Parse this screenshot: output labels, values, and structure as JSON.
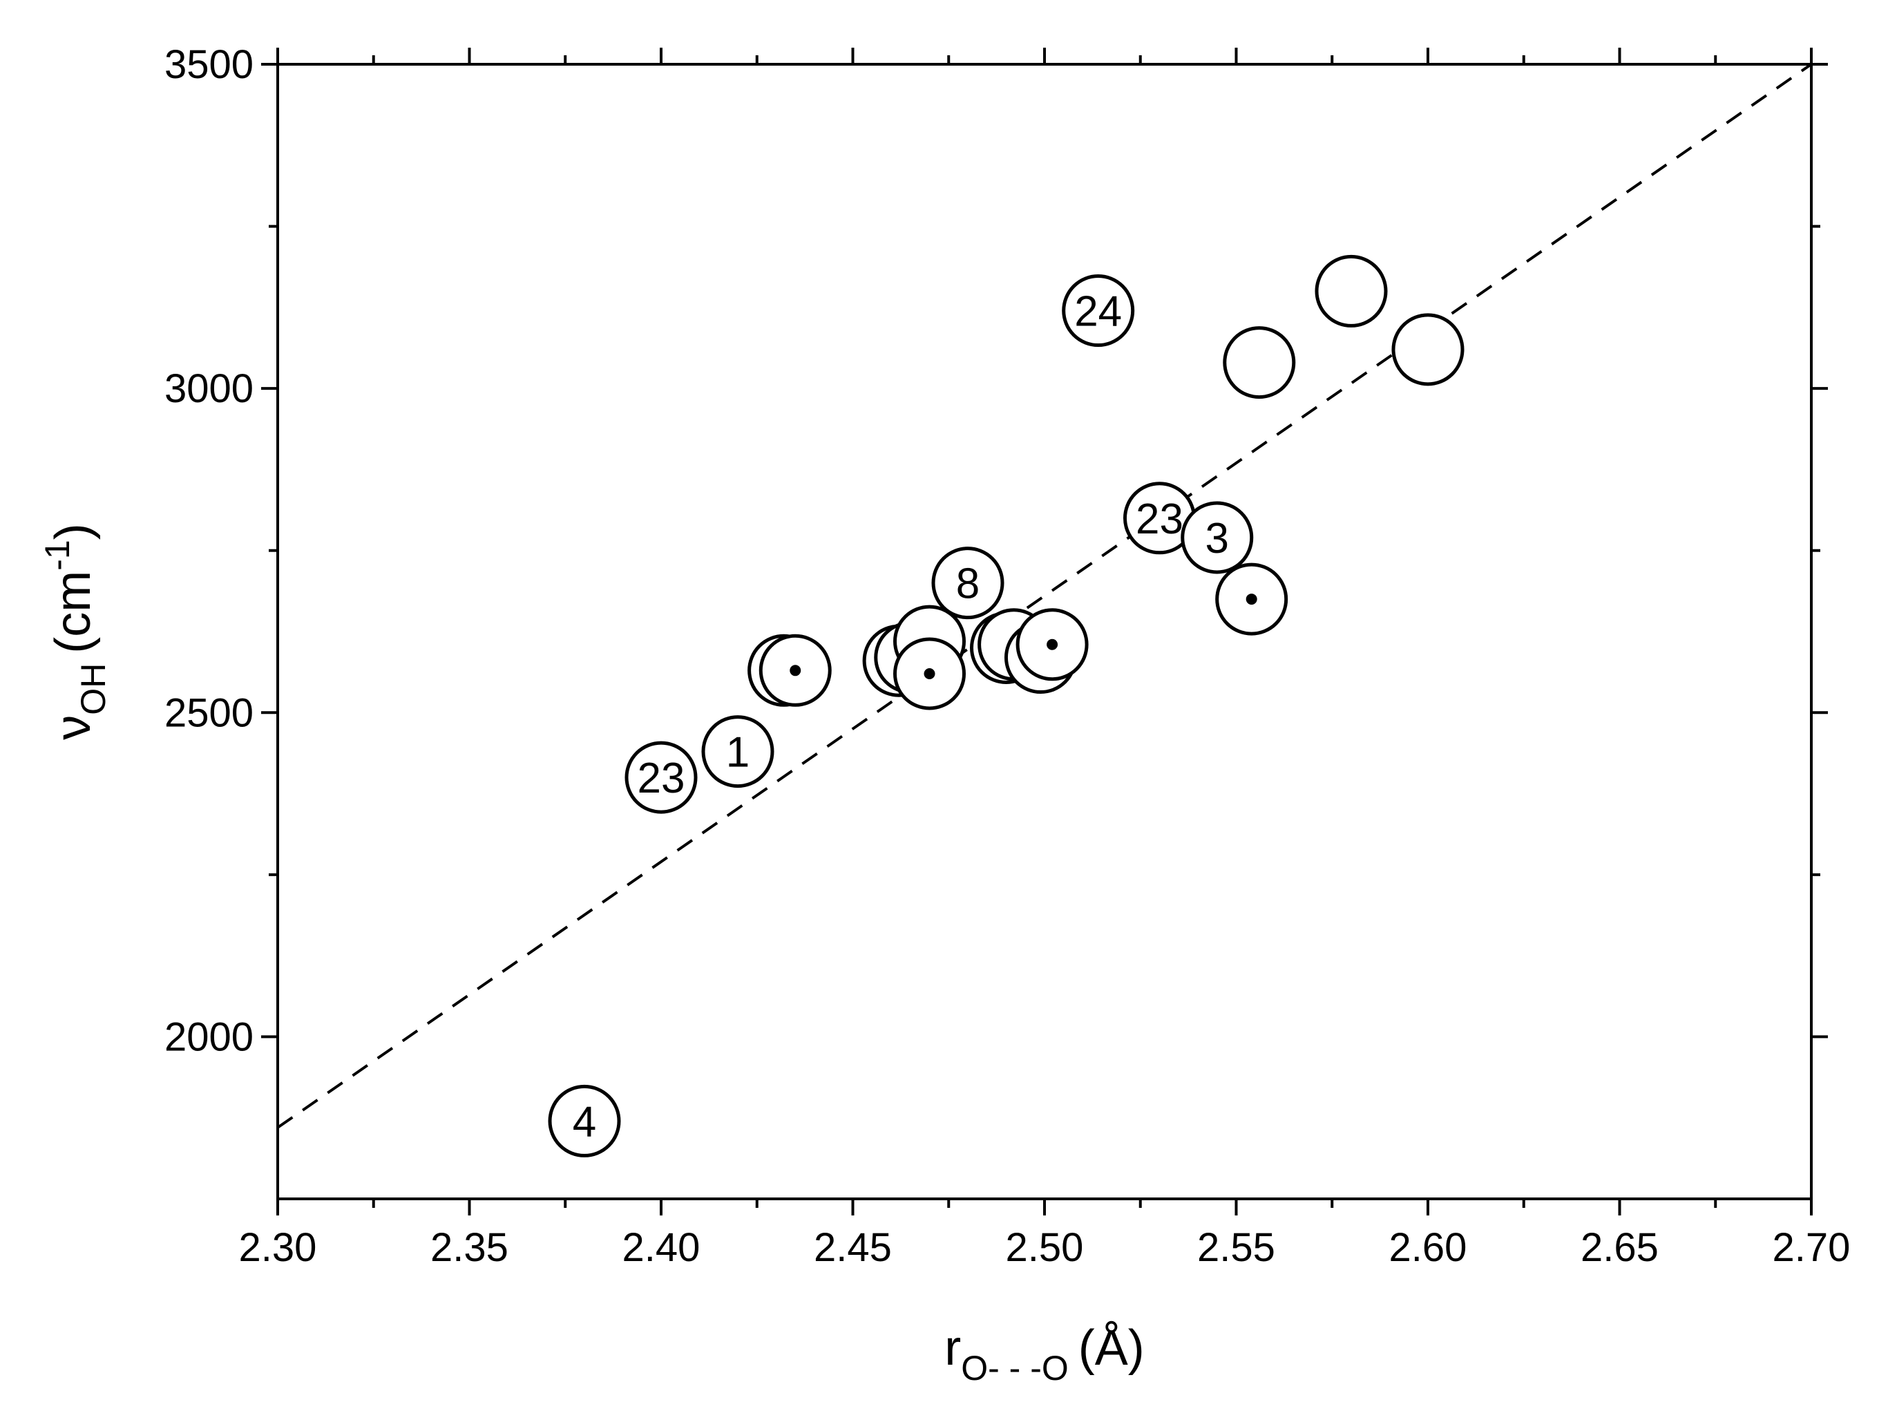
{
  "chart_data": {
    "type": "scatter",
    "title": "",
    "xlabel": {
      "main": "r",
      "sub": "O- - -O",
      "unit": "(Å)"
    },
    "ylabel": {
      "main": "ν",
      "sub": "OH",
      "unit_prefix": "(cm",
      "unit_exp": "-1",
      "unit_suffix": ")"
    },
    "xlim": [
      2.3,
      2.7
    ],
    "ylim": [
      1750,
      3500
    ],
    "x_ticks": [
      "2.30",
      "2.35",
      "2.40",
      "2.45",
      "2.50",
      "2.55",
      "2.60",
      "2.65",
      "2.70"
    ],
    "y_ticks": [
      "2000",
      "2500",
      "3000",
      "3500"
    ],
    "fit_line": {
      "style": "dashed",
      "x": [
        2.3,
        2.7
      ],
      "y": [
        1860,
        3500
      ]
    },
    "points": [
      {
        "x": 2.38,
        "y": 1870,
        "label": "4",
        "dot": false
      },
      {
        "x": 2.4,
        "y": 2400,
        "label": "23",
        "dot": false
      },
      {
        "x": 2.42,
        "y": 2440,
        "label": "1",
        "dot": false
      },
      {
        "x": 2.432,
        "y": 2565,
        "label": "",
        "dot": false
      },
      {
        "x": 2.435,
        "y": 2565,
        "label": "",
        "dot": true
      },
      {
        "x": 2.462,
        "y": 2580,
        "label": "",
        "dot": true
      },
      {
        "x": 2.465,
        "y": 2585,
        "label": "",
        "dot": true
      },
      {
        "x": 2.47,
        "y": 2610,
        "label": "",
        "dot": false
      },
      {
        "x": 2.47,
        "y": 2560,
        "label": "",
        "dot": true
      },
      {
        "x": 2.48,
        "y": 2700,
        "label": "8",
        "dot": false
      },
      {
        "x": 2.49,
        "y": 2600,
        "label": "",
        "dot": false
      },
      {
        "x": 2.492,
        "y": 2605,
        "label": "",
        "dot": true
      },
      {
        "x": 2.499,
        "y": 2585,
        "label": "",
        "dot": true
      },
      {
        "x": 2.502,
        "y": 2605,
        "label": "",
        "dot": true
      },
      {
        "x": 2.514,
        "y": 3120,
        "label": "24",
        "dot": false
      },
      {
        "x": 2.53,
        "y": 2800,
        "label": "23",
        "dot": false
      },
      {
        "x": 2.545,
        "y": 2770,
        "label": "3",
        "dot": false
      },
      {
        "x": 2.554,
        "y": 2675,
        "label": "",
        "dot": true
      },
      {
        "x": 2.556,
        "y": 3040,
        "label": "",
        "dot": false
      },
      {
        "x": 2.58,
        "y": 3150,
        "label": "",
        "dot": false
      },
      {
        "x": 2.6,
        "y": 3060,
        "label": "",
        "dot": false
      }
    ]
  }
}
